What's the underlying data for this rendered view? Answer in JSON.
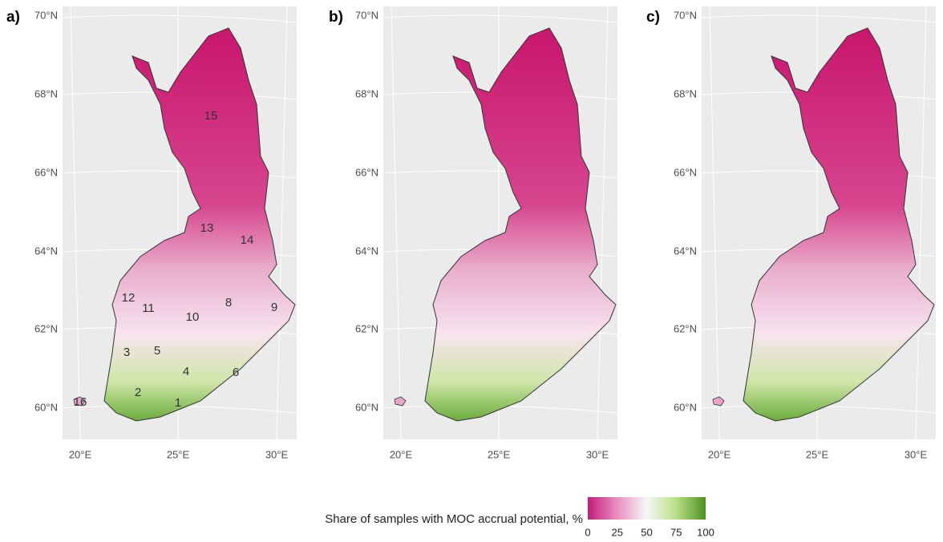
{
  "panels": [
    {
      "label": "a)",
      "lat_ticks": [
        "70°N",
        "68°N",
        "66°N",
        "64°N",
        "62°N",
        "60°N"
      ],
      "lon_ticks": [
        "20°E",
        "25°E",
        "30°E"
      ],
      "region_labels": [
        "1",
        "2",
        "3",
        "4",
        "5",
        "6",
        "8",
        "9",
        "10",
        "11",
        "12",
        "13",
        "14",
        "15",
        "16"
      ]
    },
    {
      "label": "b)",
      "lat_ticks": [
        "70°N",
        "68°N",
        "66°N",
        "64°N",
        "62°N",
        "60°N"
      ],
      "lon_ticks": [
        "20°E",
        "25°E",
        "30°E"
      ]
    },
    {
      "label": "c)",
      "lat_ticks": [
        "70°N",
        "68°N",
        "66°N",
        "64°N",
        "62°N",
        "60°N"
      ],
      "lon_ticks": [
        "20°E",
        "25°E",
        "30°E"
      ]
    }
  ],
  "legend": {
    "title": "Share of samples with MOC accrual potential, %",
    "ticks": [
      "0",
      "25",
      "50",
      "75",
      "100"
    ]
  }
}
